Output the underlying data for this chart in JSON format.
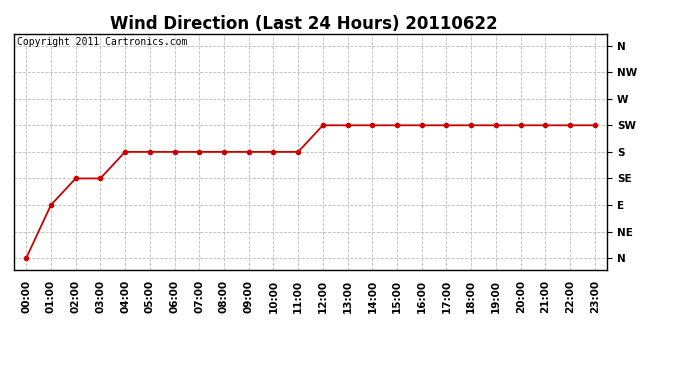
{
  "title": "Wind Direction (Last 24 Hours) 20110622",
  "copyright_text": "Copyright 2011 Cartronics.com",
  "x_labels": [
    "00:00",
    "01:00",
    "02:00",
    "03:00",
    "04:00",
    "05:00",
    "06:00",
    "07:00",
    "08:00",
    "09:00",
    "10:00",
    "11:00",
    "12:00",
    "13:00",
    "14:00",
    "15:00",
    "16:00",
    "17:00",
    "18:00",
    "19:00",
    "20:00",
    "21:00",
    "22:00",
    "23:00"
  ],
  "y_labels": [
    "N",
    "NE",
    "E",
    "SE",
    "S",
    "SW",
    "W",
    "NW",
    "N"
  ],
  "y_values": [
    0,
    45,
    90,
    135,
    180,
    225,
    270,
    315,
    360
  ],
  "wind_data": [
    0,
    90,
    135,
    135,
    180,
    180,
    180,
    180,
    180,
    180,
    180,
    180,
    225,
    225,
    225,
    225,
    225,
    225,
    225,
    225,
    225,
    225,
    225,
    225
  ],
  "line_color": "#cc0000",
  "marker": "o",
  "marker_size": 3,
  "grid_color": "#bbbbbb",
  "bg_color": "#ffffff",
  "title_fontsize": 12,
  "tick_fontsize": 7.5,
  "copyright_fontsize": 7
}
